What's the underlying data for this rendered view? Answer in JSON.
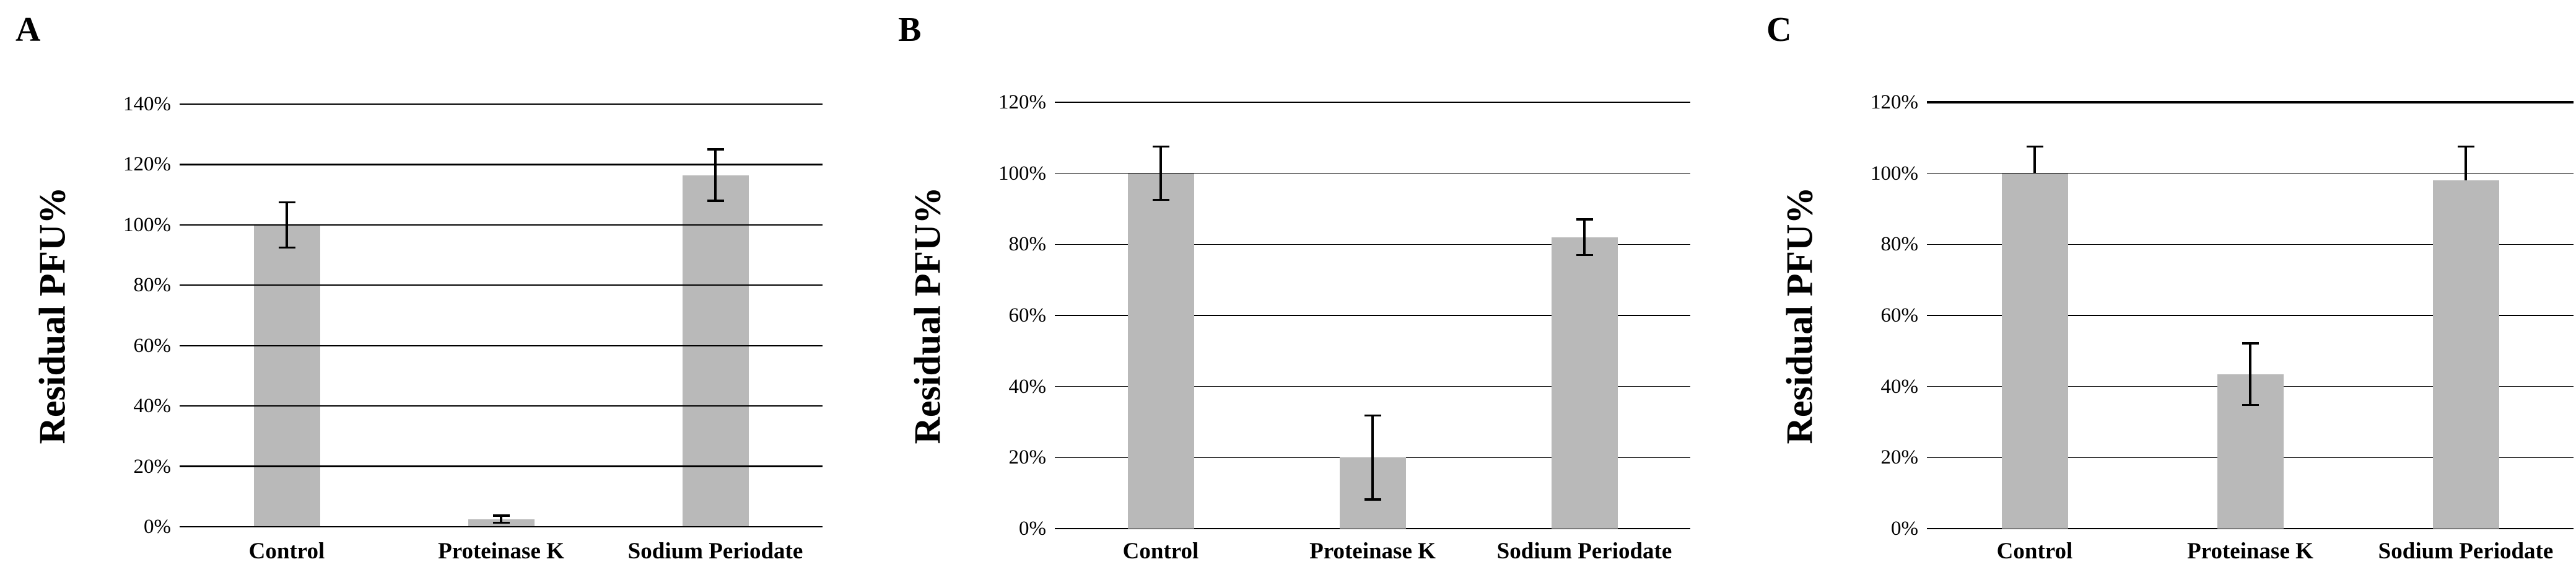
{
  "figure": {
    "background": "#ffffff",
    "description": "Three-panel bar chart figure, panels A, B and C"
  },
  "style": {
    "bar_fill": "#b9b9b9",
    "grid_color": "#000000",
    "error_color": "#000000",
    "text_color": "#000000"
  },
  "chart_data": [
    {
      "type": "bar",
      "panel_label": "A",
      "title": "",
      "categories": [
        "Control",
        "Proteinase K",
        "Sodium Periodate"
      ],
      "values": [
        100,
        2.5,
        116.5
      ],
      "errors_plus": [
        7.5,
        1.2,
        8.5
      ],
      "errors_minus": [
        7.5,
        1.2,
        8.5
      ],
      "ylabel": "Residual PFU%",
      "xlabel": "",
      "ylim": [
        0,
        140
      ],
      "ytick_step": 20,
      "ytick_labels": [
        "0%",
        "20%",
        "40%",
        "60%",
        "80%",
        "100%",
        "120%",
        "140%"
      ],
      "grid": true,
      "gridlines_over_bars": true,
      "legend": "none"
    },
    {
      "type": "bar",
      "panel_label": "B",
      "title": "",
      "categories": [
        "Control",
        "Proteinase K",
        "Sodium Periodate"
      ],
      "values": [
        100,
        20,
        82
      ],
      "errors_plus": [
        7.5,
        11.8,
        5
      ],
      "errors_minus": [
        7.5,
        11.8,
        5
      ],
      "ylabel": "Residual PFU%",
      "xlabel": "",
      "ylim": [
        0,
        120
      ],
      "ytick_step": 20,
      "ytick_labels": [
        "0%",
        "20%",
        "40%",
        "60%",
        "80%",
        "100%",
        "120%"
      ],
      "grid": true,
      "gridlines_over_bars": false,
      "legend": "none"
    },
    {
      "type": "bar",
      "panel_label": "C",
      "title": "",
      "categories": [
        "Control",
        "Proteinase K",
        "Sodium Periodate"
      ],
      "values": [
        100,
        43.5,
        98
      ],
      "errors_plus": [
        7.5,
        8.7,
        9.5
      ],
      "errors_minus": [
        0,
        8.7,
        0
      ],
      "ylabel": "Residual PFU%",
      "xlabel": "",
      "ylim": [
        0,
        120
      ],
      "ytick_step": 20,
      "ytick_labels": [
        "0%",
        "20%",
        "40%",
        "60%",
        "80%",
        "100%",
        "120%"
      ],
      "grid": true,
      "gridlines_over_bars": false,
      "legend": "none"
    }
  ]
}
